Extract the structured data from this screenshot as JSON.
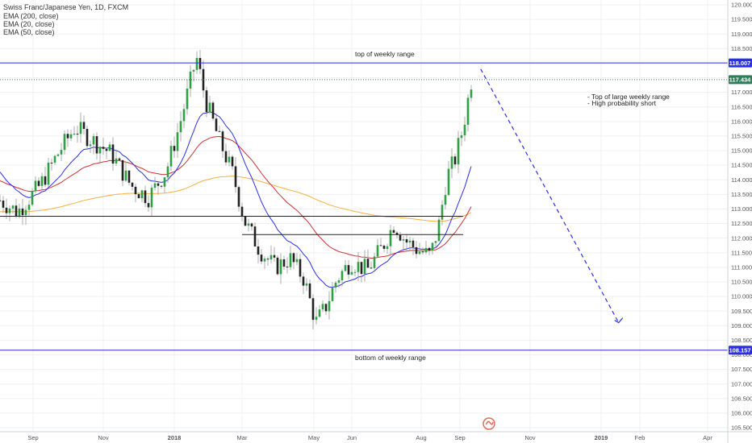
{
  "chart_data": {
    "type": "candlestick",
    "legend": {
      "symbol": "Swiss Franc/Japanese Yen, 1D, FXCM",
      "indicators": [
        "EMA (200, close)",
        "EMA (20, close)",
        "EMA (50, close)"
      ]
    },
    "x_axis": {
      "labels": [
        "Sep",
        "Nov",
        "2018",
        "Mar",
        "May",
        "Jun",
        "Aug",
        "Sep",
        "Nov",
        "2019",
        "Feb",
        "Apr"
      ],
      "bold_labels": [
        "2018",
        "2019"
      ]
    },
    "y_axis": {
      "range": [
        105.5,
        120.0
      ],
      "tick_step": 0.5,
      "ticks": [
        105.5,
        106.0,
        106.5,
        107.0,
        107.5,
        108.0,
        108.5,
        109.0,
        109.5,
        110.0,
        110.5,
        111.0,
        111.5,
        112.0,
        112.5,
        113.0,
        113.5,
        114.0,
        114.5,
        115.0,
        115.5,
        116.0,
        116.5,
        117.0,
        117.5,
        118.0,
        118.5,
        119.0,
        119.5,
        120.0
      ]
    },
    "price_tags": [
      {
        "value": 118.007,
        "label": "118.007",
        "color": "#2a2eec",
        "style": "solid"
      },
      {
        "value": 117.434,
        "label": "117.434",
        "color": "#2e7d5b",
        "style": "dotted"
      },
      {
        "value": 108.157,
        "label": "108.157",
        "color": "#2a2eec",
        "style": "solid"
      }
    ],
    "horizontal_lines": [
      {
        "value": 112.75,
        "from_date": "2017-08-01",
        "to_date": "2018-09-05",
        "color": "#222222"
      },
      {
        "value": 112.12,
        "from_date": "2018-02-28",
        "to_date": "2018-09-05",
        "color": "#222222"
      }
    ],
    "annotations": [
      {
        "id": "top",
        "text": "top of weekly range"
      },
      {
        "id": "bottom",
        "text": "bottom of weekly range"
      },
      {
        "id": "note",
        "lines": [
          "- Top  of large weekly range",
          "- High probability short"
        ]
      }
    ],
    "projection": {
      "color": "#2a2eec",
      "points": [
        {
          "date": "2018-09-20",
          "value": 117.8
        },
        {
          "date": "2019-01-16",
          "value": 109.1
        }
      ]
    },
    "ema_colors": {
      "ema20": "#2a2eec",
      "ema50": "#d32f2f",
      "ema200": "#f5b041"
    },
    "colors": {
      "up": "#2ea043",
      "down": "#222222",
      "wick": "#999999"
    },
    "closes": [
      {
        "date": "2017-08-01",
        "value": 113.4
      },
      {
        "date": "2017-08-20",
        "value": 112.9
      },
      {
        "date": "2017-09-08",
        "value": 113.8
      },
      {
        "date": "2017-09-25",
        "value": 115.0
      },
      {
        "date": "2017-10-08",
        "value": 115.8
      },
      {
        "date": "2017-10-25",
        "value": 115.3
      },
      {
        "date": "2017-11-08",
        "value": 114.9
      },
      {
        "date": "2017-11-25",
        "value": 113.8
      },
      {
        "date": "2017-12-10",
        "value": 113.4
      },
      {
        "date": "2017-12-25",
        "value": 114.3
      },
      {
        "date": "2018-01-05",
        "value": 115.8
      },
      {
        "date": "2018-01-15",
        "value": 117.4
      },
      {
        "date": "2018-01-20",
        "value": 118.2
      },
      {
        "date": "2018-01-28",
        "value": 116.7
      },
      {
        "date": "2018-02-08",
        "value": 115.4
      },
      {
        "date": "2018-02-20",
        "value": 114.2
      },
      {
        "date": "2018-03-02",
        "value": 112.6
      },
      {
        "date": "2018-03-15",
        "value": 111.6
      },
      {
        "date": "2018-03-28",
        "value": 111.0
      },
      {
        "date": "2018-04-10",
        "value": 111.3
      },
      {
        "date": "2018-04-22",
        "value": 110.6
      },
      {
        "date": "2018-05-02",
        "value": 109.1
      },
      {
        "date": "2018-05-10",
        "value": 109.6
      },
      {
        "date": "2018-05-20",
        "value": 110.6
      },
      {
        "date": "2018-06-01",
        "value": 111.2
      },
      {
        "date": "2018-06-15",
        "value": 110.9
      },
      {
        "date": "2018-06-28",
        "value": 111.7
      },
      {
        "date": "2018-07-08",
        "value": 112.5
      },
      {
        "date": "2018-07-18",
        "value": 111.9
      },
      {
        "date": "2018-07-28",
        "value": 111.6
      },
      {
        "date": "2018-08-08",
        "value": 111.4
      },
      {
        "date": "2018-08-15",
        "value": 112.4
      },
      {
        "date": "2018-08-22",
        "value": 114.1
      },
      {
        "date": "2018-08-29",
        "value": 114.7
      },
      {
        "date": "2018-09-05",
        "value": 115.8
      },
      {
        "date": "2018-09-12",
        "value": 117.4
      }
    ]
  }
}
